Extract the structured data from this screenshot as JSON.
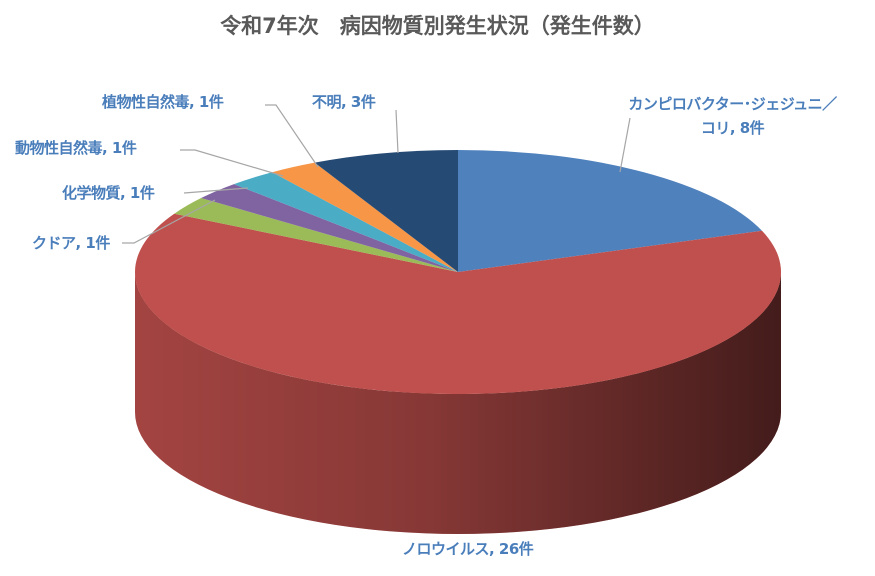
{
  "chart_data": {
    "type": "pie",
    "style": "3d",
    "title": "令和7年次　病因物質別発生状況（発生件数）",
    "unit": "件",
    "start_angle": "12 o'clock, clockwise",
    "legend": "none (data labels)",
    "slices": [
      {
        "label": "カンピロバクター･ジェジュニ／コリ",
        "value": 8,
        "text": "カンピロバクター･ジェジュニ／コリ, 8件",
        "color": "#4f81bd"
      },
      {
        "label": "ノロウイルス",
        "value": 26,
        "text": "ノロウイルス, 26件",
        "color": "#c0504d"
      },
      {
        "label": "クドア",
        "value": 1,
        "text": "クドア, 1件",
        "color": "#9bbb59"
      },
      {
        "label": "化学物質",
        "value": 1,
        "text": "化学物質, 1件",
        "color": "#8064a2"
      },
      {
        "label": "動物性自然毒",
        "value": 1,
        "text": "動物性自然毒, 1件",
        "color": "#4bacc6"
      },
      {
        "label": "植物性自然毒",
        "value": 1,
        "text": "植物性自然毒, 1件",
        "color": "#f79646"
      },
      {
        "label": "不明",
        "value": 3,
        "text": "不明, 3件",
        "color": "#254a74"
      }
    ]
  }
}
